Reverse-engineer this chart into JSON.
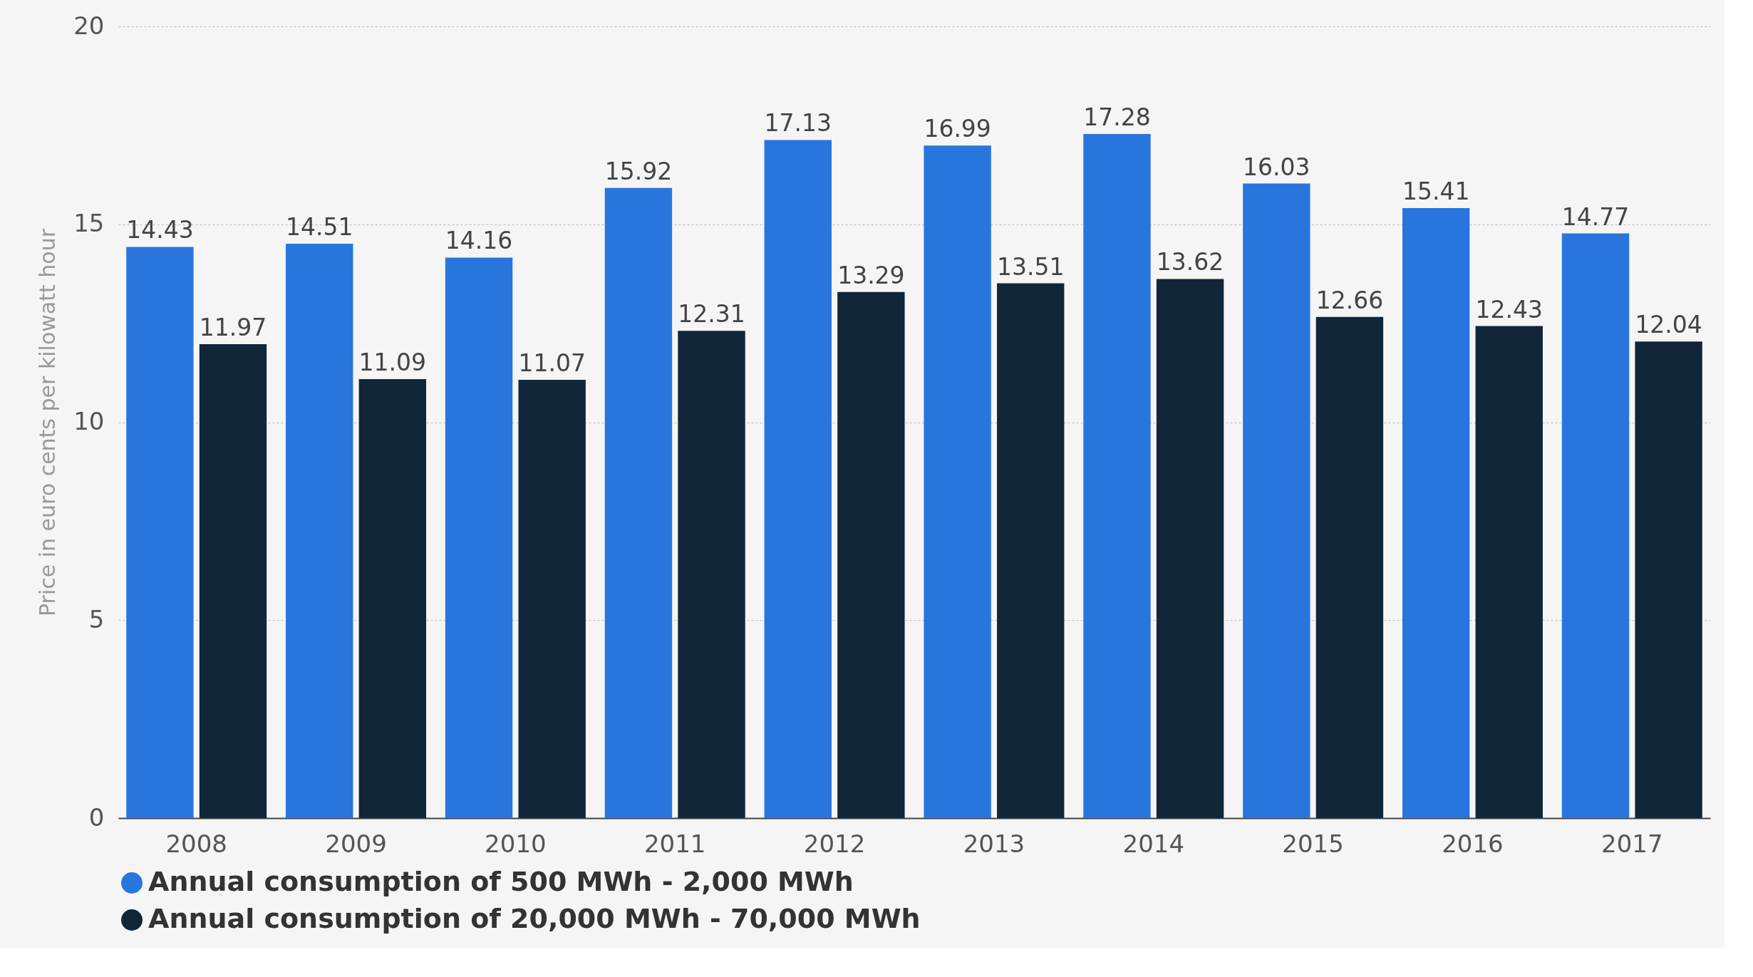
{
  "chart_data": {
    "type": "bar",
    "ylabel": "Price in euro cents per kilowatt hour",
    "categories": [
      "2008",
      "2009",
      "2010",
      "2011",
      "2012",
      "2013",
      "2014",
      "2015",
      "2016",
      "2017"
    ],
    "series": [
      {
        "name": "Annual consumption of 500 MWh - 2,000 MWh",
        "color": "#2876dd",
        "values": [
          14.43,
          14.51,
          14.16,
          15.92,
          17.13,
          16.99,
          17.28,
          16.03,
          15.41,
          14.77
        ]
      },
      {
        "name": "Annual consumption of 20,000 MWh - 70,000 MWh",
        "color": "#12263a",
        "values": [
          11.97,
          11.09,
          11.07,
          12.31,
          13.29,
          13.51,
          13.62,
          12.66,
          12.43,
          12.04
        ]
      }
    ],
    "ylim": [
      0,
      20
    ],
    "yticks": [
      0,
      5,
      10,
      15,
      20
    ],
    "grid": "y",
    "legend": "bottom",
    "data_labels": true
  }
}
